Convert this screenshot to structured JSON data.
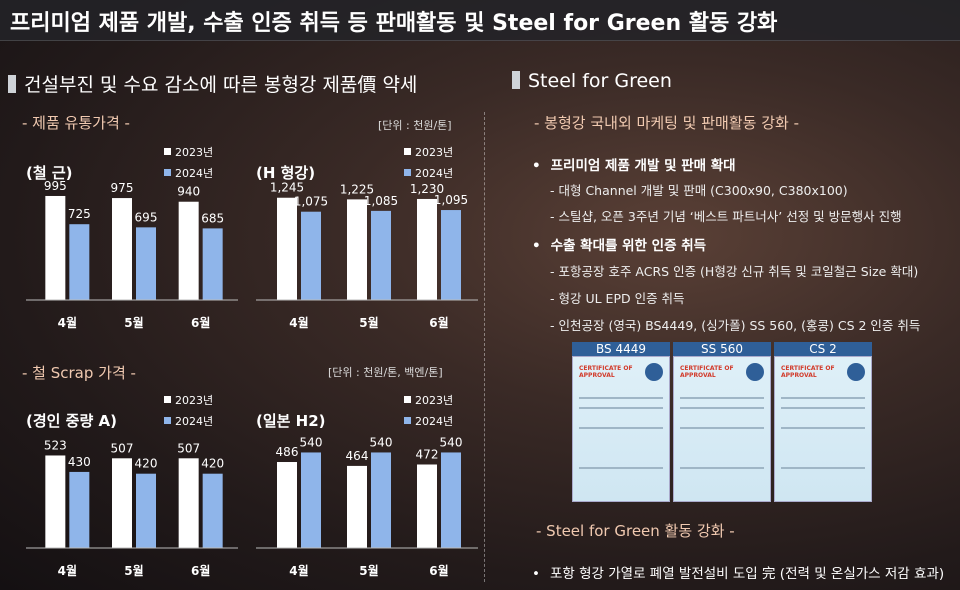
{
  "title": "프리미엄 제품 개발, 수출 인증 취득 등 판매활동 및 Steel for Green 활동 강화",
  "left_section": {
    "heading": "건설부진 및 수요 감소에 따른 봉형강 제품價 약세",
    "price_sub": "- 제품 유통가격 -",
    "price_unit": "[단위 : 천원/톤]",
    "scrap_sub": "- 철 Scrap 가격 -",
    "scrap_unit": "[단위 : 천원/톤, 백엔/톤]"
  },
  "right_section": {
    "heading": "Steel for Green",
    "sub1": "- 봉형강 국내외 마케팅 및 판매활동 강화 -",
    "bullets": [
      {
        "text": "프리미엄 제품 개발 및 판매 확대",
        "items": [
          "대형 Channel 개발 및 판매 (C300x90, C380x100)",
          "스틸샵, 오픈 3주년 기념 ‘베스트 파트너사’ 선정 및 방문행사 진행"
        ]
      },
      {
        "text": "수출 확대를 위한 인증 취득",
        "items": [
          "포항공장 호주 ACRS 인증 (H형강 신규 취득 및 코일철근 Size 확대)",
          "형강 UL EPD 인증 취득",
          "인천공장 (영국) BS4449, (싱가폴) SS 560, (홍콩) CS 2 인증 취득"
        ]
      }
    ],
    "certificates": [
      {
        "label": "BS 4449",
        "heading": "CERTIFICATE OF APPROVAL"
      },
      {
        "label": "SS 560",
        "heading": "CERTIFICATE OF APPROVAL"
      },
      {
        "label": "CS 2",
        "heading": "CERTIFICATE OF APPROVAL"
      }
    ],
    "sub2": "- Steel for Green 활동 강화 -",
    "bullet3": "포항 형강 가열로 폐열 발전설비 도입 完 (전력 및 온실가스 저감 효과)"
  },
  "colors": {
    "y2023": "#ffffff",
    "y2024": "#8fb5ea"
  },
  "chart_data": [
    {
      "type": "bar",
      "title": "(철    근)",
      "categories": [
        "4월",
        "5월",
        "6월"
      ],
      "series": [
        {
          "name": "2023년",
          "values": [
            995,
            975,
            940
          ]
        },
        {
          "name": "2024년",
          "values": [
            725,
            695,
            685
          ]
        }
      ],
      "ylim": [
        0,
        1100
      ]
    },
    {
      "type": "bar",
      "title": "(H 형강)",
      "categories": [
        "4월",
        "5월",
        "6월"
      ],
      "series": [
        {
          "name": "2023년",
          "values": [
            1245,
            1225,
            1230
          ]
        },
        {
          "name": "2024년",
          "values": [
            1075,
            1085,
            1095
          ]
        }
      ],
      "ylim": [
        0,
        1400
      ]
    },
    {
      "type": "bar",
      "title": "(경인 중량 A)",
      "categories": [
        "4월",
        "5월",
        "6월"
      ],
      "series": [
        {
          "name": "2023년",
          "values": [
            523,
            507,
            507
          ]
        },
        {
          "name": "2024년",
          "values": [
            430,
            420,
            420
          ]
        }
      ],
      "ylim": [
        0,
        650
      ]
    },
    {
      "type": "bar",
      "title": "(일본 H2)",
      "categories": [
        "4월",
        "5월",
        "6월"
      ],
      "series": [
        {
          "name": "2023년",
          "values": [
            486,
            464,
            472
          ]
        },
        {
          "name": "2024년",
          "values": [
            540,
            540,
            540
          ]
        }
      ],
      "ylim": [
        0,
        650
      ]
    }
  ]
}
